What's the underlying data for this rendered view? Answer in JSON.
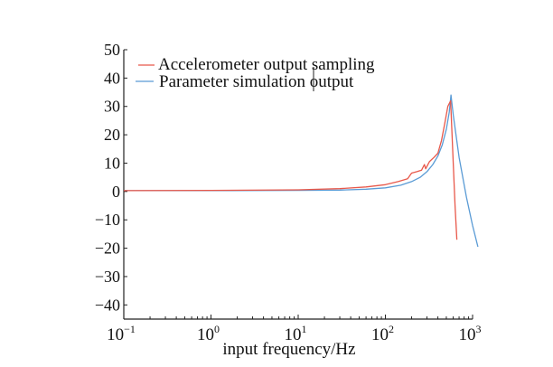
{
  "chart_data": {
    "type": "line",
    "title": "",
    "xlabel": "input frequency/Hz",
    "ylabel": "",
    "xscale": "log",
    "xlim": [
      0.1,
      1000
    ],
    "ylim": [
      -45,
      50
    ],
    "grid": false,
    "legend_position": "top-left",
    "x_tick_labels": [
      {
        "base": "10",
        "exp": "−1",
        "value": 0.1
      },
      {
        "base": "10",
        "exp": "0",
        "value": 1
      },
      {
        "base": "10",
        "exp": "1",
        "value": 10
      },
      {
        "base": "10",
        "exp": "2",
        "value": 100
      },
      {
        "base": "10",
        "exp": "3",
        "value": 1000
      }
    ],
    "y_ticks": [
      50,
      40,
      30,
      20,
      10,
      0,
      -10,
      -20,
      -30,
      -40
    ],
    "y_tick_labels": [
      "50",
      "40",
      "30",
      "20",
      "10",
      "0",
      "−10",
      "−20",
      "−30",
      "−40"
    ],
    "series": [
      {
        "name": "Accelerometer output sampling",
        "color": "#e8584a",
        "x": [
          0.1,
          1,
          10,
          30,
          60,
          100,
          140,
          180,
          200,
          230,
          260,
          280,
          290,
          320,
          360,
          400,
          440,
          480,
          520,
          560,
          600,
          630,
          660
        ],
        "y": [
          0.3,
          0.4,
          0.6,
          1.0,
          1.6,
          2.4,
          3.5,
          4.5,
          6.5,
          7.0,
          7.5,
          9.5,
          8.0,
          10.5,
          12.0,
          13.5,
          18.0,
          24.0,
          30.0,
          32.0,
          10.0,
          -5.0,
          -17.0
        ]
      },
      {
        "name": "Parameter simulation output",
        "color": "#5a9bd5",
        "x": [
          0.1,
          1,
          10,
          30,
          60,
          100,
          150,
          200,
          250,
          300,
          350,
          400,
          450,
          500,
          540,
          565,
          600,
          700,
          850,
          1000,
          1150
        ],
        "y": [
          0.3,
          0.3,
          0.4,
          0.5,
          0.8,
          1.3,
          2.2,
          3.5,
          5.0,
          7.0,
          9.5,
          12.5,
          16.5,
          22.0,
          28.0,
          34.0,
          27.0,
          12.0,
          -2.0,
          -12.0,
          -19.5
        ]
      }
    ]
  }
}
